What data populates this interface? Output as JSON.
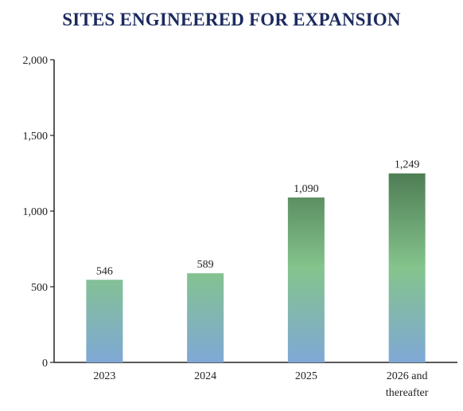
{
  "chart_data": {
    "type": "bar",
    "title": "SITES ENGINEERED FOR EXPANSION",
    "xlabel": "",
    "ylabel": "",
    "categories": [
      "2023",
      "2024",
      "2025",
      "2026 and thereafter"
    ],
    "category_lines": [
      [
        "2023"
      ],
      [
        "2024"
      ],
      [
        "2025"
      ],
      [
        "2026 and",
        "thereafter"
      ]
    ],
    "values": [
      546,
      589,
      1090,
      1249
    ],
    "value_labels": [
      "546",
      "589",
      "1,090",
      "1,249"
    ],
    "ylim": [
      0,
      2000
    ],
    "yticks": [
      0,
      500,
      1000,
      1500,
      2000
    ],
    "ytick_labels": [
      "0",
      "500",
      "1,000",
      "1,500",
      "2,000"
    ],
    "grid": false,
    "legend": "none",
    "colors": {
      "title": "#1c2a5e",
      "axis": "#222222",
      "bar_bottom": "#7fa8d6",
      "bar_mid": "#84c48c",
      "bar_top": "#4f7d55"
    }
  }
}
